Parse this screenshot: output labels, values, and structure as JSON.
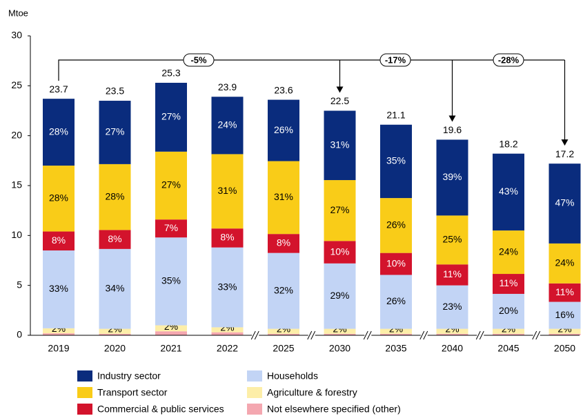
{
  "chart_data": {
    "type": "stacked_bar",
    "y_axis_label": "Mtoe",
    "categories": [
      "2019",
      "2020",
      "2021",
      "2022",
      "2025",
      "2030",
      "2035",
      "2040",
      "2045",
      "2050"
    ],
    "series": [
      {
        "name": "Not elsewhere specified (other)",
        "color": "#f4a7b0",
        "values": [
          0.2,
          0.15,
          0.4,
          0.3,
          0.15,
          0.15,
          0.15,
          0.15,
          0.15,
          0.15
        ]
      },
      {
        "name": "Agriculture & forestry",
        "color": "#fdeea8",
        "values": [
          0.5,
          0.5,
          0.6,
          0.5,
          0.5,
          0.5,
          0.5,
          0.5,
          0.5,
          0.5
        ],
        "labels": [
          "2%",
          "2%",
          "2%",
          "2%",
          "2%",
          "2%",
          "2%",
          "2%",
          "2%",
          "2%"
        ]
      },
      {
        "name": "Households",
        "color": "#c2d4f5",
        "values": [
          7.8,
          8.0,
          8.8,
          8.0,
          7.6,
          6.55,
          5.4,
          4.35,
          3.5,
          2.7
        ],
        "labels": [
          "33%",
          "34%",
          "35%",
          "33%",
          "32%",
          "29%",
          "26%",
          "23%",
          "20%",
          "16%"
        ]
      },
      {
        "name": "Commercial & public services",
        "color": "#d3132c",
        "text_color": "#ffffff",
        "values": [
          1.9,
          1.9,
          1.8,
          1.9,
          1.9,
          2.25,
          2.2,
          2.1,
          2.0,
          1.85
        ],
        "labels": [
          "8%",
          "8%",
          "7%",
          "8%",
          "8%",
          "10%",
          "10%",
          "11%",
          "11%",
          "11%"
        ]
      },
      {
        "name": "Transport sector",
        "color": "#f9cc18",
        "values": [
          6.6,
          6.6,
          6.8,
          7.45,
          7.3,
          6.1,
          5.5,
          4.9,
          4.35,
          4.0
        ],
        "labels": [
          "28%",
          "28%",
          "27%",
          "31%",
          "31%",
          "27%",
          "26%",
          "25%",
          "24%",
          "24%"
        ]
      },
      {
        "name": "Industry sector",
        "color": "#0a2c7d",
        "text_color": "#ffffff",
        "values": [
          6.7,
          6.35,
          6.9,
          5.75,
          6.15,
          6.95,
          7.35,
          7.6,
          7.7,
          8.0
        ],
        "labels": [
          "28%",
          "27%",
          "27%",
          "24%",
          "26%",
          "31%",
          "35%",
          "39%",
          "43%",
          "47%"
        ]
      }
    ],
    "totals": [
      23.7,
      23.5,
      25.3,
      23.9,
      23.6,
      22.5,
      21.1,
      19.6,
      18.2,
      17.2
    ],
    "annotations": [
      {
        "text": "-5%",
        "target": "2030"
      },
      {
        "text": "-17%",
        "target": "2040"
      },
      {
        "text": "-28%",
        "target": "2050"
      }
    ],
    "ylim": [
      0,
      30
    ],
    "yticks": [
      0,
      5,
      10,
      15,
      20,
      25,
      30
    ]
  }
}
